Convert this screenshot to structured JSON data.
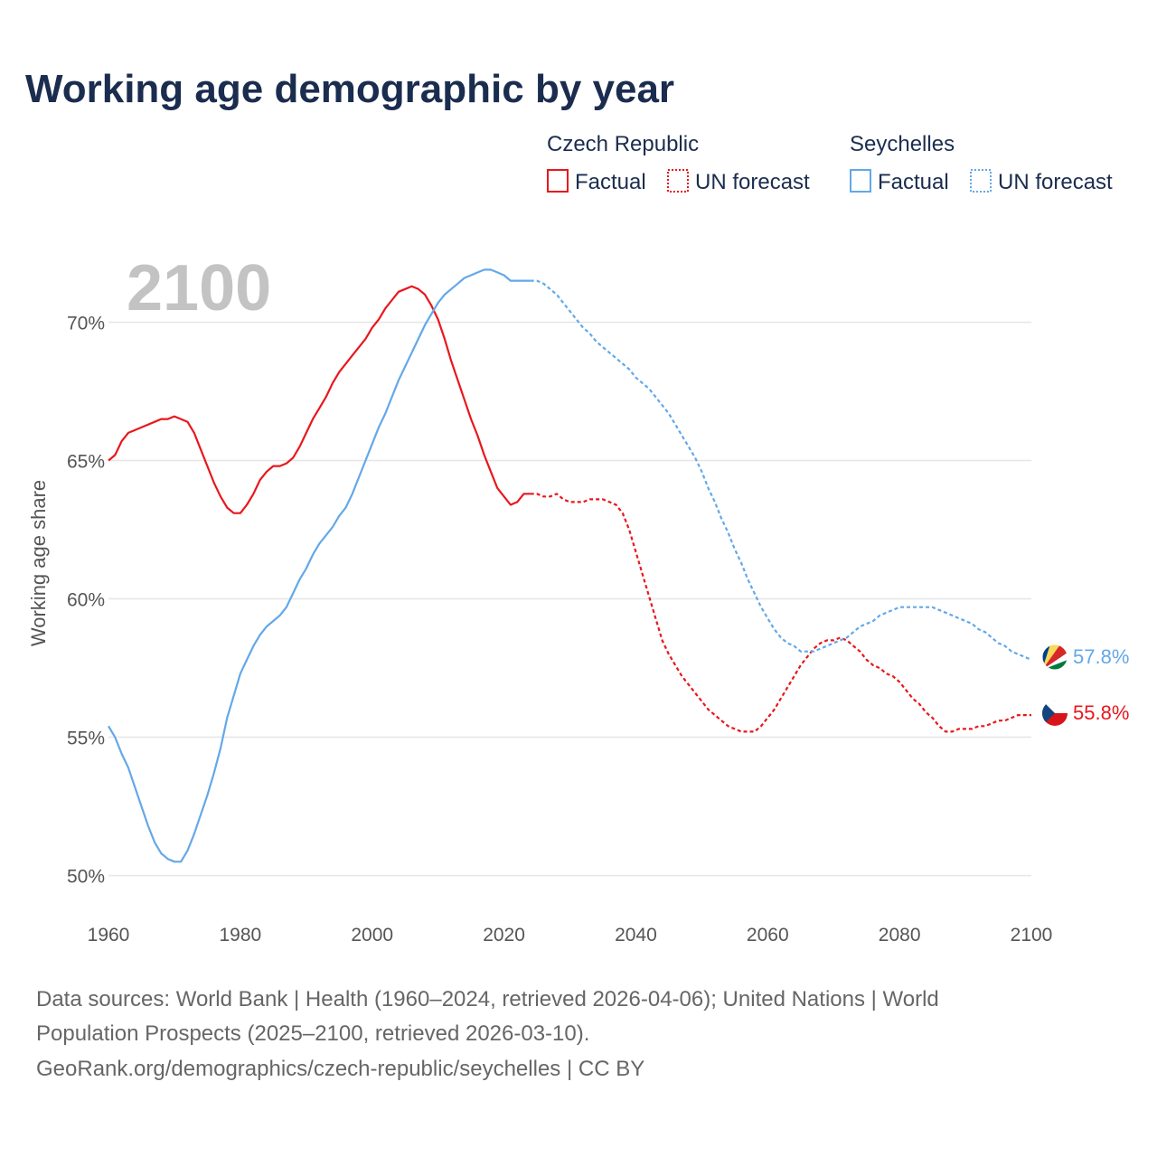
{
  "title": "Working age demographic by year",
  "year_label": "2100",
  "legend": {
    "groups": [
      {
        "name": "Czech Republic",
        "color": "#e8171d",
        "factual": "Factual",
        "forecast": "UN forecast"
      },
      {
        "name": "Seychelles",
        "color": "#63a8e8",
        "factual": "Factual",
        "forecast": "UN forecast"
      }
    ]
  },
  "footer": {
    "line1": "Data sources: World Bank | Health (1960–2024, retrieved 2026-04-06); United Nations | World",
    "line2": "Population Prospects (2025–2100, retrieved 2026-03-10).",
    "line3": "GeoRank.org/demographics/czech-republic/seychelles | CC BY"
  },
  "chart_data": {
    "type": "line",
    "title": "Working age demographic by year",
    "xlabel": "",
    "ylabel": "Working age share",
    "xlim": [
      1960,
      2100
    ],
    "ylim": [
      49.3,
      72.5
    ],
    "x_ticks": [
      1960,
      1980,
      2000,
      2020,
      2040,
      2060,
      2080,
      2100
    ],
    "y_ticks": [
      50,
      55,
      60,
      65,
      70
    ],
    "y_tick_labels": [
      "50%",
      "55%",
      "60%",
      "65%",
      "70%"
    ],
    "factual_range": [
      1960,
      2024
    ],
    "forecast_range": [
      2024,
      2100
    ],
    "series": [
      {
        "name": "Czech Republic",
        "color": "#e8171d",
        "end_label": "55.8%",
        "flag": "czech-flag-icon",
        "points": [
          [
            1960,
            65.0
          ],
          [
            1961,
            65.2
          ],
          [
            1962,
            65.7
          ],
          [
            1963,
            66.0
          ],
          [
            1964,
            66.1
          ],
          [
            1965,
            66.2
          ],
          [
            1966,
            66.3
          ],
          [
            1967,
            66.4
          ],
          [
            1968,
            66.5
          ],
          [
            1969,
            66.5
          ],
          [
            1970,
            66.6
          ],
          [
            1971,
            66.5
          ],
          [
            1972,
            66.4
          ],
          [
            1973,
            66.0
          ],
          [
            1974,
            65.4
          ],
          [
            1975,
            64.8
          ],
          [
            1976,
            64.2
          ],
          [
            1977,
            63.7
          ],
          [
            1978,
            63.3
          ],
          [
            1979,
            63.1
          ],
          [
            1980,
            63.1
          ],
          [
            1981,
            63.4
          ],
          [
            1982,
            63.8
          ],
          [
            1983,
            64.3
          ],
          [
            1984,
            64.6
          ],
          [
            1985,
            64.8
          ],
          [
            1986,
            64.8
          ],
          [
            1987,
            64.9
          ],
          [
            1988,
            65.1
          ],
          [
            1989,
            65.5
          ],
          [
            1990,
            66.0
          ],
          [
            1991,
            66.5
          ],
          [
            1992,
            66.9
          ],
          [
            1993,
            67.3
          ],
          [
            1994,
            67.8
          ],
          [
            1995,
            68.2
          ],
          [
            1996,
            68.5
          ],
          [
            1997,
            68.8
          ],
          [
            1998,
            69.1
          ],
          [
            1999,
            69.4
          ],
          [
            2000,
            69.8
          ],
          [
            2001,
            70.1
          ],
          [
            2002,
            70.5
          ],
          [
            2003,
            70.8
          ],
          [
            2004,
            71.1
          ],
          [
            2005,
            71.2
          ],
          [
            2006,
            71.3
          ],
          [
            2007,
            71.2
          ],
          [
            2008,
            71.0
          ],
          [
            2009,
            70.6
          ],
          [
            2010,
            70.1
          ],
          [
            2011,
            69.4
          ],
          [
            2012,
            68.6
          ],
          [
            2013,
            67.9
          ],
          [
            2014,
            67.2
          ],
          [
            2015,
            66.5
          ],
          [
            2016,
            65.9
          ],
          [
            2017,
            65.2
          ],
          [
            2018,
            64.6
          ],
          [
            2019,
            64.0
          ],
          [
            2020,
            63.7
          ],
          [
            2021,
            63.4
          ],
          [
            2022,
            63.5
          ],
          [
            2023,
            63.8
          ],
          [
            2024,
            63.8
          ],
          [
            2025,
            63.8
          ],
          [
            2026,
            63.7
          ],
          [
            2027,
            63.7
          ],
          [
            2028,
            63.8
          ],
          [
            2029,
            63.6
          ],
          [
            2030,
            63.5
          ],
          [
            2031,
            63.5
          ],
          [
            2032,
            63.5
          ],
          [
            2033,
            63.6
          ],
          [
            2034,
            63.6
          ],
          [
            2035,
            63.6
          ],
          [
            2036,
            63.5
          ],
          [
            2037,
            63.4
          ],
          [
            2038,
            63.1
          ],
          [
            2039,
            62.5
          ],
          [
            2040,
            61.7
          ],
          [
            2041,
            60.9
          ],
          [
            2042,
            60.1
          ],
          [
            2043,
            59.3
          ],
          [
            2044,
            58.5
          ],
          [
            2045,
            58.0
          ],
          [
            2046,
            57.6
          ],
          [
            2047,
            57.2
          ],
          [
            2048,
            56.9
          ],
          [
            2049,
            56.6
          ],
          [
            2050,
            56.3
          ],
          [
            2051,
            56.0
          ],
          [
            2052,
            55.8
          ],
          [
            2053,
            55.6
          ],
          [
            2054,
            55.4
          ],
          [
            2055,
            55.3
          ],
          [
            2056,
            55.2
          ],
          [
            2057,
            55.2
          ],
          [
            2058,
            55.2
          ],
          [
            2059,
            55.4
          ],
          [
            2060,
            55.7
          ],
          [
            2061,
            56.0
          ],
          [
            2062,
            56.4
          ],
          [
            2063,
            56.8
          ],
          [
            2064,
            57.2
          ],
          [
            2065,
            57.6
          ],
          [
            2066,
            57.9
          ],
          [
            2067,
            58.2
          ],
          [
            2068,
            58.4
          ],
          [
            2069,
            58.5
          ],
          [
            2070,
            58.5
          ],
          [
            2071,
            58.6
          ],
          [
            2072,
            58.5
          ],
          [
            2073,
            58.3
          ],
          [
            2074,
            58.1
          ],
          [
            2075,
            57.8
          ],
          [
            2076,
            57.6
          ],
          [
            2077,
            57.5
          ],
          [
            2078,
            57.3
          ],
          [
            2079,
            57.2
          ],
          [
            2080,
            57.0
          ],
          [
            2081,
            56.7
          ],
          [
            2082,
            56.4
          ],
          [
            2083,
            56.2
          ],
          [
            2084,
            55.9
          ],
          [
            2085,
            55.7
          ],
          [
            2086,
            55.4
          ],
          [
            2087,
            55.2
          ],
          [
            2088,
            55.2
          ],
          [
            2089,
            55.3
          ],
          [
            2090,
            55.3
          ],
          [
            2091,
            55.3
          ],
          [
            2092,
            55.4
          ],
          [
            2093,
            55.4
          ],
          [
            2094,
            55.5
          ],
          [
            2095,
            55.6
          ],
          [
            2096,
            55.6
          ],
          [
            2097,
            55.7
          ],
          [
            2098,
            55.8
          ],
          [
            2099,
            55.8
          ],
          [
            2100,
            55.8
          ]
        ]
      },
      {
        "name": "Seychelles",
        "color": "#63a8e8",
        "end_label": "57.8%",
        "flag": "seychelles-flag-icon",
        "points": [
          [
            1960,
            55.4
          ],
          [
            1961,
            55.0
          ],
          [
            1962,
            54.4
          ],
          [
            1963,
            53.9
          ],
          [
            1964,
            53.2
          ],
          [
            1965,
            52.5
          ],
          [
            1966,
            51.8
          ],
          [
            1967,
            51.2
          ],
          [
            1968,
            50.8
          ],
          [
            1969,
            50.6
          ],
          [
            1970,
            50.5
          ],
          [
            1971,
            50.5
          ],
          [
            1972,
            50.9
          ],
          [
            1973,
            51.5
          ],
          [
            1974,
            52.2
          ],
          [
            1975,
            52.9
          ],
          [
            1976,
            53.7
          ],
          [
            1977,
            54.6
          ],
          [
            1978,
            55.7
          ],
          [
            1979,
            56.5
          ],
          [
            1980,
            57.3
          ],
          [
            1981,
            57.8
          ],
          [
            1982,
            58.3
          ],
          [
            1983,
            58.7
          ],
          [
            1984,
            59.0
          ],
          [
            1985,
            59.2
          ],
          [
            1986,
            59.4
          ],
          [
            1987,
            59.7
          ],
          [
            1988,
            60.2
          ],
          [
            1989,
            60.7
          ],
          [
            1990,
            61.1
          ],
          [
            1991,
            61.6
          ],
          [
            1992,
            62.0
          ],
          [
            1993,
            62.3
          ],
          [
            1994,
            62.6
          ],
          [
            1995,
            63.0
          ],
          [
            1996,
            63.3
          ],
          [
            1997,
            63.8
          ],
          [
            1998,
            64.4
          ],
          [
            1999,
            65.0
          ],
          [
            2000,
            65.6
          ],
          [
            2001,
            66.2
          ],
          [
            2002,
            66.7
          ],
          [
            2003,
            67.3
          ],
          [
            2004,
            67.9
          ],
          [
            2005,
            68.4
          ],
          [
            2006,
            68.9
          ],
          [
            2007,
            69.4
          ],
          [
            2008,
            69.9
          ],
          [
            2009,
            70.3
          ],
          [
            2010,
            70.7
          ],
          [
            2011,
            71.0
          ],
          [
            2012,
            71.2
          ],
          [
            2013,
            71.4
          ],
          [
            2014,
            71.6
          ],
          [
            2015,
            71.7
          ],
          [
            2016,
            71.8
          ],
          [
            2017,
            71.9
          ],
          [
            2018,
            71.9
          ],
          [
            2019,
            71.8
          ],
          [
            2020,
            71.7
          ],
          [
            2021,
            71.5
          ],
          [
            2022,
            71.5
          ],
          [
            2023,
            71.5
          ],
          [
            2024,
            71.5
          ],
          [
            2025,
            71.5
          ],
          [
            2026,
            71.4
          ],
          [
            2027,
            71.2
          ],
          [
            2028,
            71.0
          ],
          [
            2029,
            70.7
          ],
          [
            2030,
            70.4
          ],
          [
            2031,
            70.1
          ],
          [
            2032,
            69.8
          ],
          [
            2033,
            69.6
          ],
          [
            2034,
            69.3
          ],
          [
            2035,
            69.1
          ],
          [
            2036,
            68.9
          ],
          [
            2037,
            68.7
          ],
          [
            2038,
            68.5
          ],
          [
            2039,
            68.3
          ],
          [
            2040,
            68.0
          ],
          [
            2041,
            67.8
          ],
          [
            2042,
            67.6
          ],
          [
            2043,
            67.3
          ],
          [
            2044,
            67.0
          ],
          [
            2045,
            66.7
          ],
          [
            2046,
            66.3
          ],
          [
            2047,
            65.9
          ],
          [
            2048,
            65.5
          ],
          [
            2049,
            65.1
          ],
          [
            2050,
            64.6
          ],
          [
            2051,
            64.0
          ],
          [
            2052,
            63.5
          ],
          [
            2053,
            62.9
          ],
          [
            2054,
            62.4
          ],
          [
            2055,
            61.8
          ],
          [
            2056,
            61.3
          ],
          [
            2057,
            60.7
          ],
          [
            2058,
            60.2
          ],
          [
            2059,
            59.7
          ],
          [
            2060,
            59.3
          ],
          [
            2061,
            58.9
          ],
          [
            2062,
            58.6
          ],
          [
            2063,
            58.4
          ],
          [
            2064,
            58.3
          ],
          [
            2065,
            58.1
          ],
          [
            2066,
            58.1
          ],
          [
            2067,
            58.1
          ],
          [
            2068,
            58.2
          ],
          [
            2069,
            58.3
          ],
          [
            2070,
            58.4
          ],
          [
            2071,
            58.5
          ],
          [
            2072,
            58.6
          ],
          [
            2073,
            58.8
          ],
          [
            2074,
            59.0
          ],
          [
            2075,
            59.1
          ],
          [
            2076,
            59.2
          ],
          [
            2077,
            59.4
          ],
          [
            2078,
            59.5
          ],
          [
            2079,
            59.6
          ],
          [
            2080,
            59.7
          ],
          [
            2081,
            59.7
          ],
          [
            2082,
            59.7
          ],
          [
            2083,
            59.7
          ],
          [
            2084,
            59.7
          ],
          [
            2085,
            59.7
          ],
          [
            2086,
            59.6
          ],
          [
            2087,
            59.5
          ],
          [
            2088,
            59.4
          ],
          [
            2089,
            59.3
          ],
          [
            2090,
            59.2
          ],
          [
            2091,
            59.1
          ],
          [
            2092,
            58.9
          ],
          [
            2093,
            58.8
          ],
          [
            2094,
            58.6
          ],
          [
            2095,
            58.4
          ],
          [
            2096,
            58.3
          ],
          [
            2097,
            58.1
          ],
          [
            2098,
            58.0
          ],
          [
            2099,
            57.9
          ],
          [
            2100,
            57.8
          ]
        ]
      }
    ]
  }
}
